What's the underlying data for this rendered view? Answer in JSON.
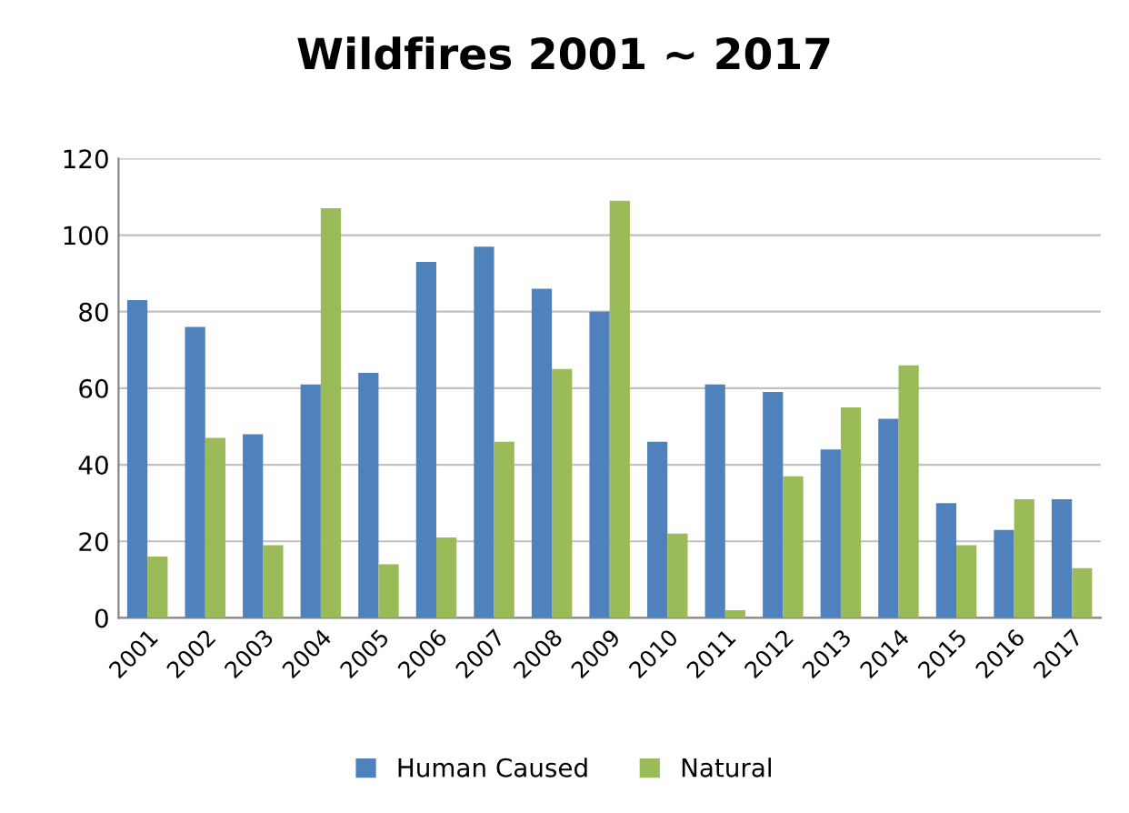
{
  "chart_data": {
    "type": "bar",
    "title": "Wildfires 2001 ~ 2017",
    "categories": [
      "2001",
      "2002",
      "2003",
      "2004",
      "2005",
      "2006",
      "2007",
      "2008",
      "2009",
      "2010",
      "2011",
      "2012",
      "2013",
      "2014",
      "2015",
      "2016",
      "2017"
    ],
    "series": [
      {
        "name": "Human Caused",
        "color": "#4f81bd",
        "values": [
          83,
          76,
          48,
          61,
          64,
          93,
          97,
          86,
          80,
          46,
          61,
          59,
          44,
          52,
          30,
          23,
          31
        ]
      },
      {
        "name": "Natural",
        "color": "#9bbb59",
        "values": [
          16,
          47,
          19,
          107,
          14,
          21,
          46,
          65,
          109,
          22,
          2,
          37,
          55,
          66,
          19,
          31,
          13
        ]
      }
    ],
    "ylim": [
      0,
      120
    ],
    "yticks": [
      0,
      20,
      40,
      60,
      80,
      100,
      120
    ],
    "grid": "y",
    "legend": "bottom"
  }
}
